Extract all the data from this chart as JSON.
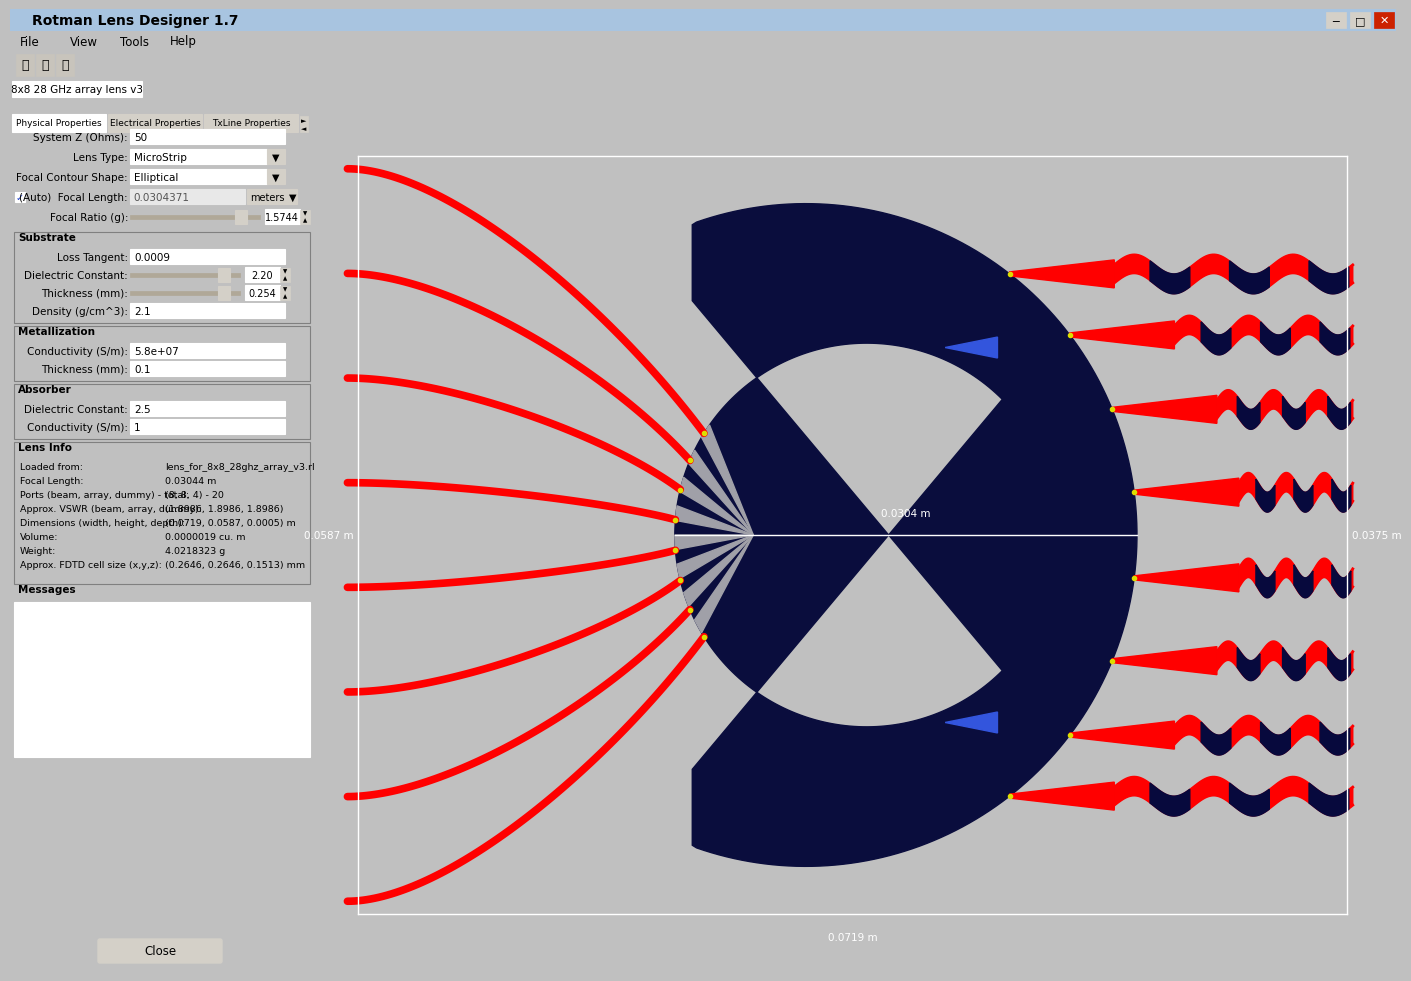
{
  "title": "Rotman Lens Designer 1.7",
  "tab_title": "8x8 28 GHz array lens v3",
  "canvas_bg": "#07093d",
  "panel_bg": "#d4d0c8",
  "white": "#ffffff",
  "dim_labels": {
    "height": "0.0587 m",
    "focal": "0.0304 m",
    "width": "0.0719 m",
    "right": "0.0375 m"
  },
  "colors": {
    "red": "#ff0000",
    "gray": "#a0a0a8",
    "blue": "#3355dd",
    "dark_navy": "#07093d",
    "yellow": "#ffff00",
    "white": "#ffffff"
  },
  "info_rows": [
    [
      "Loaded from:",
      "lens_for_8x8_28ghz_array_v3.rl"
    ],
    [
      "Focal Length:",
      "0.03044 m"
    ],
    [
      "Ports (beam, array, dummy) - total:",
      "(8, 8, 4) - 20"
    ],
    [
      "Approx. VSWR (beam, array, dummy):",
      "(1.8986, 1.8986, 1.8986)"
    ],
    [
      "Dimensions (width, height, depth):",
      "(0.0719, 0.0587, 0.0005) m"
    ],
    [
      "Volume:",
      "0.0000019 cu. m"
    ],
    [
      "Weight:",
      "4.0218323 g"
    ],
    [
      "Approx. FDTD cell size (x,y,z):",
      "(0.2646, 0.2646, 0.1513) mm"
    ]
  ]
}
